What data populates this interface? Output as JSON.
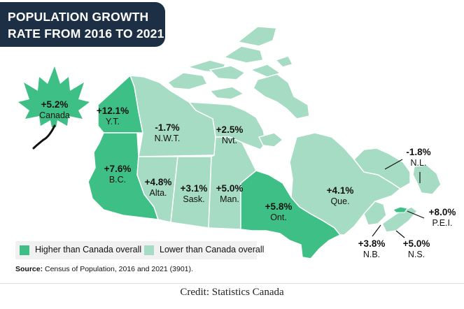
{
  "title": {
    "line1": "POPULATION GROWTH",
    "line2": "RATE FROM 2016 TO 2021"
  },
  "colors": {
    "higher": "#3dbf86",
    "lower": "#a6dbc4",
    "title_bg": "#1c2f45",
    "border": "#ffffff"
  },
  "canada": {
    "value": "+5.2%",
    "name": "Canada",
    "icon": "maple-leaf-icon"
  },
  "regions": [
    {
      "id": "yt",
      "value": "+12.1%",
      "name": "Y.T.",
      "category": "higher"
    },
    {
      "id": "nwt",
      "value": "-1.7%",
      "name": "N.W.T.",
      "category": "lower"
    },
    {
      "id": "nvt",
      "value": "+2.5%",
      "name": "Nvt.",
      "category": "lower"
    },
    {
      "id": "bc",
      "value": "+7.6%",
      "name": "B.C.",
      "category": "higher"
    },
    {
      "id": "ab",
      "value": "+4.8%",
      "name": "Alta.",
      "category": "lower"
    },
    {
      "id": "sk",
      "value": "+3.1%",
      "name": "Sask.",
      "category": "lower"
    },
    {
      "id": "mb",
      "value": "+5.0%",
      "name": "Man.",
      "category": "lower"
    },
    {
      "id": "on",
      "value": "+5.8%",
      "name": "Ont.",
      "category": "higher"
    },
    {
      "id": "qc",
      "value": "+4.1%",
      "name": "Que.",
      "category": "lower"
    },
    {
      "id": "nl",
      "value": "-1.8%",
      "name": "N.L.",
      "category": "lower"
    },
    {
      "id": "pe",
      "value": "+8.0%",
      "name": "P.E.I.",
      "category": "higher"
    },
    {
      "id": "nb",
      "value": "+3.8%",
      "name": "N.B.",
      "category": "lower"
    },
    {
      "id": "ns",
      "value": "+5.0%",
      "name": "N.S.",
      "category": "lower"
    }
  ],
  "legend": {
    "higher": "Higher than Canada overall",
    "lower": "Lower than Canada overall"
  },
  "source": {
    "label": "Source:",
    "text": " Census of Population, 2016 and 2021 (3901)."
  },
  "credit": "Credit: Statistics Canada"
}
